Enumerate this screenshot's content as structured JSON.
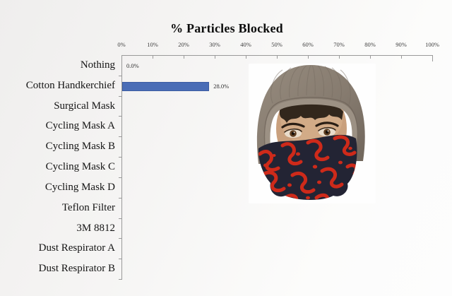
{
  "chart_data": {
    "type": "bar",
    "orientation": "horizontal",
    "title": "% Particles Blocked",
    "categories": [
      "Nothing",
      "Cotton Handkerchief",
      "Surgical Mask",
      "Cycling Mask A",
      "Cycling Mask B",
      "Cycling Mask C",
      "Cycling Mask D",
      "Teflon Filter",
      "3M 8812",
      "Dust Respirator A",
      "Dust Respirator B"
    ],
    "values": [
      0,
      28,
      null,
      null,
      null,
      null,
      null,
      null,
      null,
      null,
      null
    ],
    "value_labels": [
      "0.0%",
      "28.0%",
      null,
      null,
      null,
      null,
      null,
      null,
      null,
      null,
      null
    ],
    "x_ticks": [
      "0%",
      "10%",
      "20%",
      "30%",
      "40%",
      "50%",
      "60%",
      "70%",
      "80%",
      "90%",
      "100%"
    ],
    "xlim": [
      0,
      100
    ],
    "grid": "off",
    "legend": "none",
    "bar_color": "#4a6db6",
    "bar_border_color": "#3c5ca2",
    "axis_color": "#9a9a9a",
    "title_color": "#0d0d0d",
    "category_label_color": "#141414",
    "tick_label_color": "#3c3c3c"
  },
  "photo": {
    "description": "Young man wearing a knitted grey-brown beanie, eyes visible, with a black bandana patterned in red covering his nose, mouth and neck",
    "colors": {
      "beanie": "#867b6f",
      "skin": "#c9a07d",
      "hair": "#32271c",
      "bandana_base": "#232434",
      "bandana_pattern": "#ce2a1a"
    }
  }
}
